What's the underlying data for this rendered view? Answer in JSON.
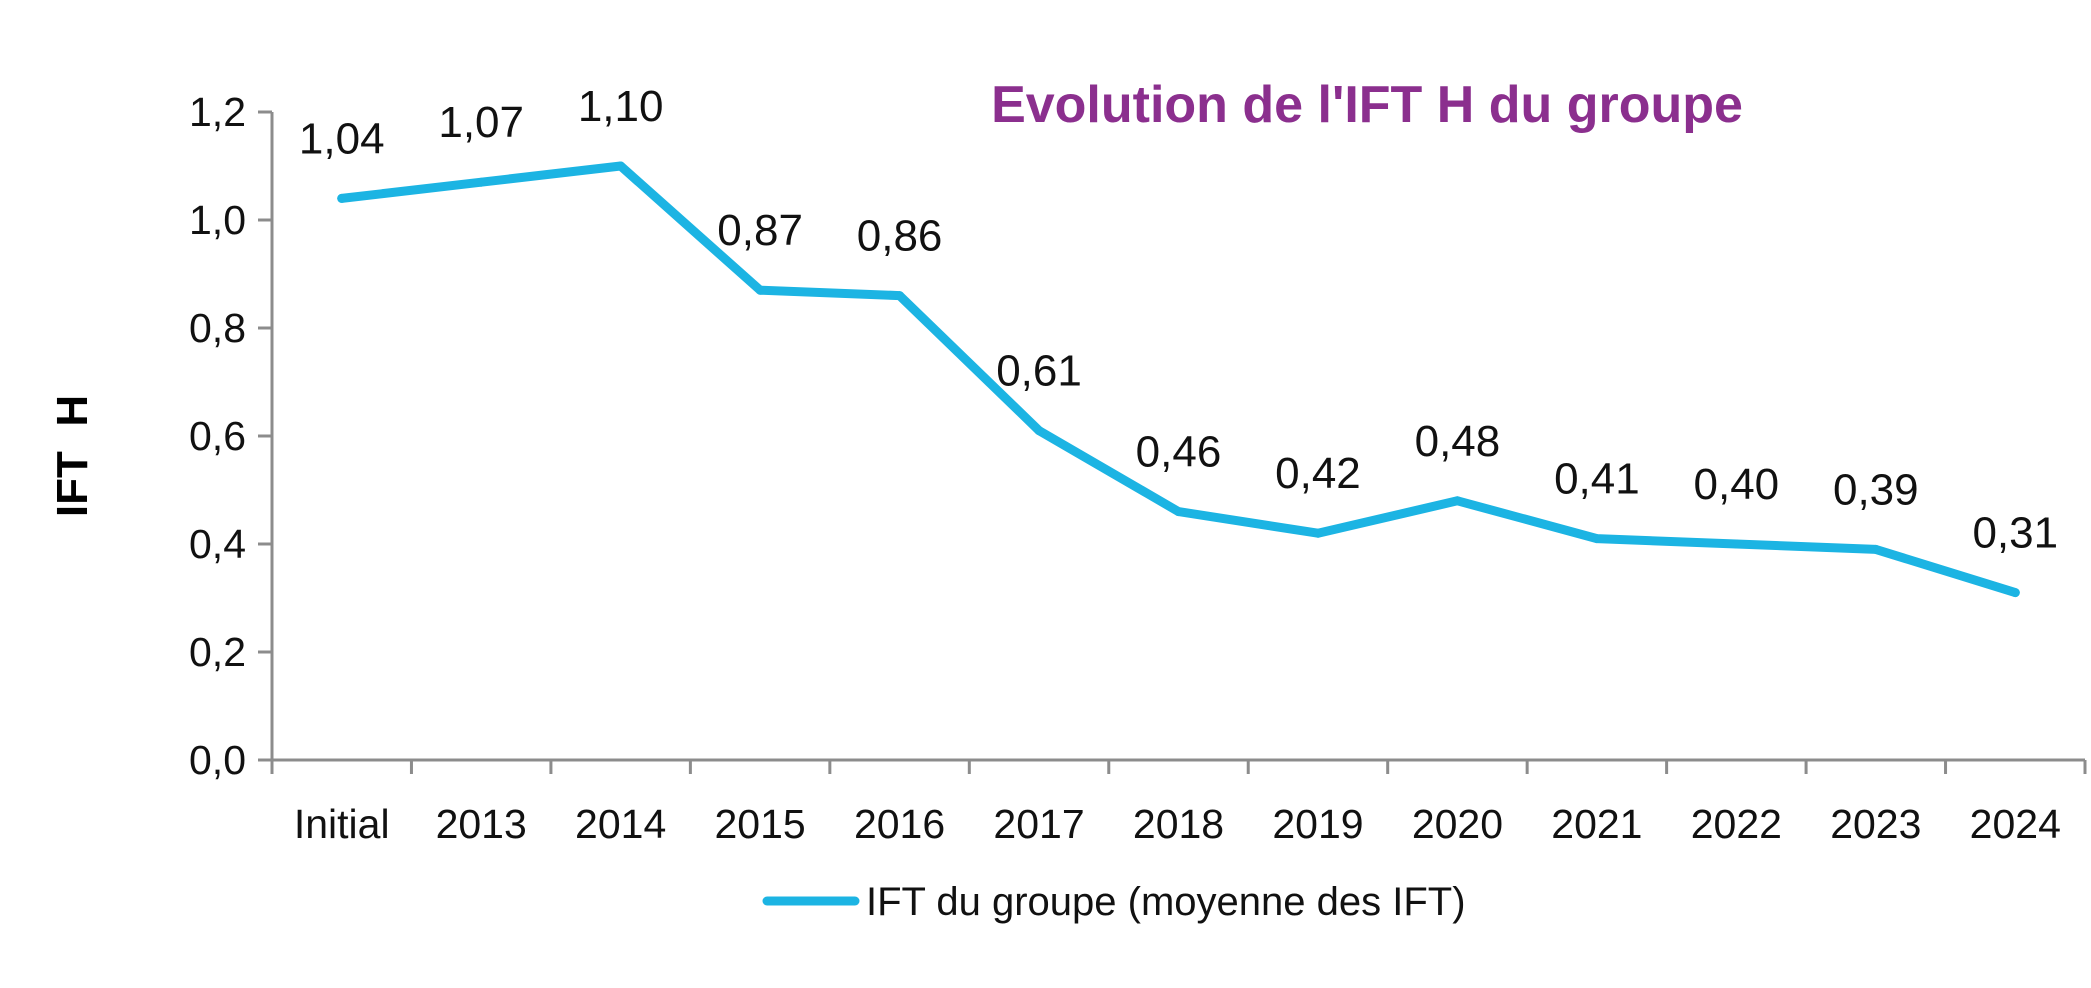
{
  "chart_data": {
    "type": "line",
    "title": "Evolution de l'IFT H du groupe",
    "xlabel": "",
    "ylabel": "IFT  H",
    "categories": [
      "Initial",
      "2013",
      "2014",
      "2015",
      "2016",
      "2017",
      "2018",
      "2019",
      "2020",
      "2021",
      "2022",
      "2023",
      "2024"
    ],
    "series": [
      {
        "name": "IFT du groupe (moyenne des IFT)",
        "values": [
          1.04,
          1.07,
          1.1,
          0.87,
          0.86,
          0.61,
          0.46,
          0.42,
          0.48,
          0.41,
          0.4,
          0.39,
          0.31
        ],
        "labels": [
          "1,04",
          "1,07",
          "1,10",
          "0,87",
          "0,86",
          "0,61",
          "0,46",
          "0,42",
          "0,48",
          "0,41",
          "0,40",
          "0,39",
          "0,31"
        ]
      }
    ],
    "ylim": [
      0,
      1.2
    ],
    "yticks": [
      0,
      0.2,
      0.4,
      0.6,
      0.8,
      1.0,
      1.2
    ],
    "ytick_labels": [
      "0,0",
      "0,2",
      "0,4",
      "0,6",
      "0,8",
      "1,0",
      "1,2"
    ],
    "grid": false,
    "legend": "bottom",
    "colors": {
      "line": "#1cb4e3",
      "title": "#8b2f8e",
      "axis": "#8c8c8c"
    }
  }
}
